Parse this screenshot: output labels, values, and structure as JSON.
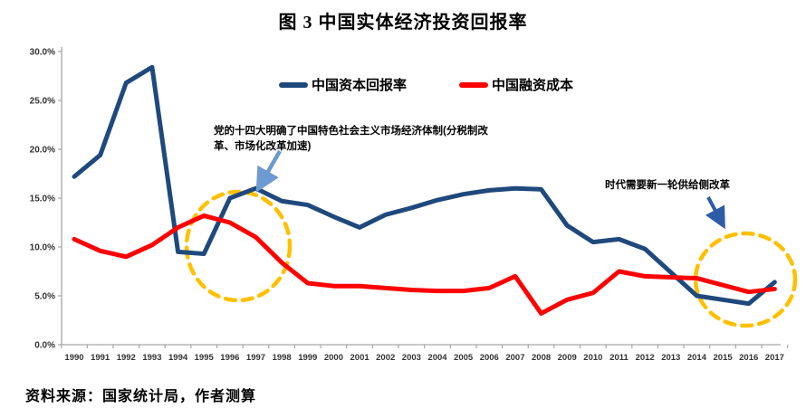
{
  "title": "图 3 中国实体经济投资回报率",
  "source": "资料来源：国家统计局，作者测算",
  "legend": [
    {
      "label": "中国资本回报率",
      "color": "#1F497D"
    },
    {
      "label": "中国融资成本",
      "color": "#FF0000"
    }
  ],
  "annotations": {
    "left": {
      "text": "党的十四大明确了中国特色社会主义市场经济体制(分税制改革、市场化改革加速)"
    },
    "right": {
      "text": "时代需要新一轮供给侧改革"
    }
  },
  "decorations": {
    "highlight_circle_color": "#FFC000",
    "left_arrow_color": "#6D9AD0",
    "right_arrow_color": "#2E5CA6",
    "axis_color": "#A6A6A6",
    "tick_label_color": "#333333"
  },
  "chart_data": {
    "type": "line",
    "x": [
      1990,
      1991,
      1992,
      1993,
      1994,
      1995,
      1996,
      1997,
      1998,
      1999,
      2000,
      2001,
      2002,
      2003,
      2004,
      2005,
      2006,
      2007,
      2008,
      2009,
      2010,
      2011,
      2012,
      2013,
      2014,
      2015,
      2016,
      2017
    ],
    "series": [
      {
        "name": "中国资本回报率",
        "color": "#1F497D",
        "values": [
          17.2,
          19.4,
          26.8,
          28.4,
          9.5,
          9.3,
          15.0,
          16.0,
          14.7,
          14.3,
          13.1,
          12.0,
          13.3,
          14.0,
          14.8,
          15.4,
          15.8,
          16.0,
          15.9,
          12.2,
          10.5,
          10.8,
          9.8,
          7.4,
          5.0,
          4.6,
          4.2,
          6.4
        ]
      },
      {
        "name": "中国融资成本",
        "color": "#FF0000",
        "values": [
          10.8,
          9.6,
          9.0,
          10.2,
          12.0,
          13.2,
          12.5,
          11.0,
          8.4,
          6.3,
          6.0,
          6.0,
          5.8,
          5.6,
          5.5,
          5.5,
          5.8,
          7.0,
          3.2,
          4.6,
          5.3,
          7.5,
          7.0,
          6.9,
          6.8,
          6.1,
          5.4,
          5.7
        ]
      }
    ],
    "title": "图 3 中国实体经济投资回报率",
    "xlabel": "",
    "ylabel": "",
    "ylim": [
      0,
      30
    ],
    "ytick_step": 5,
    "ytick_labels": [
      "0.0%",
      "5.0%",
      "10.0%",
      "15.0%",
      "20.0%",
      "25.0%",
      "30.0%"
    ],
    "grid": false,
    "legend_position": "top-center"
  }
}
